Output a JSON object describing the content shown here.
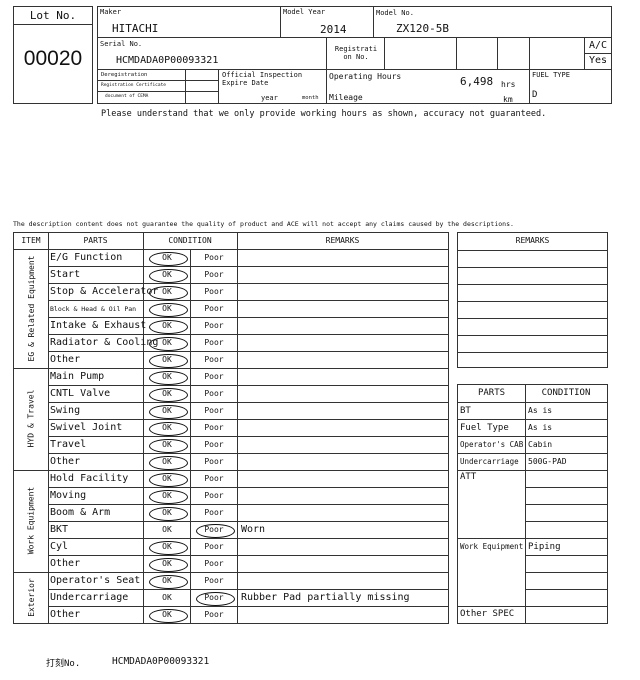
{
  "lot": {
    "label": "Lot No.",
    "value": "00020"
  },
  "header": {
    "maker_label": "Maker",
    "maker": "HITACHI",
    "year_label": "Model Year",
    "year": "2014",
    "model_label": "Model No.",
    "model": "ZX120-5B",
    "serial_label": "Serial No.",
    "serial": "HCMDADA0P00093321",
    "reg_label": "Registrati on No.",
    "ac_label": "A/C",
    "ac": "Yes",
    "dereg_label": "Deregistration",
    "regcert_label": "Registration Certificate",
    "cema_label": "document of CEMA",
    "insp_label": "Official Inspection Expire Date",
    "year_unit": "year",
    "month_unit": "month",
    "hours_label": "Operating Hours",
    "hours": "6,498",
    "hours_unit": "hrs",
    "mileage_label": "Mileage",
    "km_unit": "km",
    "fuel_label": "FUEL TYPE",
    "fuel": "D"
  },
  "notice": "Please understand that we only provide working hours as shown, accuracy not guaranteed.",
  "disclaimer": "The description content does not guarantee the quality of product and ACE will not accept any claims caused by the descriptions.",
  "table": {
    "headers": {
      "item": "ITEM",
      "parts": "PARTS",
      "condition": "CONDITION",
      "remarks": "REMARKS"
    },
    "groups": [
      "EG & Related Equipment",
      "HYD & Travel",
      "Work Equipment",
      "Exterior"
    ],
    "rows": [
      {
        "part": "E/G Function",
        "ok": "OK",
        "poor": "Poor",
        "selected": "ok",
        "remarks": ""
      },
      {
        "part": "Start",
        "ok": "OK",
        "poor": "Poor",
        "selected": "ok",
        "remarks": ""
      },
      {
        "part": "Stop & Accelerator",
        "ok": "OK",
        "poor": "Poor",
        "selected": "ok",
        "remarks": ""
      },
      {
        "part": "Block & Head & Oil Pan",
        "ok": "OK",
        "poor": "Poor",
        "selected": "ok",
        "remarks": ""
      },
      {
        "part": "Intake & Exhaust",
        "ok": "OK",
        "poor": "Poor",
        "selected": "ok",
        "remarks": ""
      },
      {
        "part": "Radiator & Cooling",
        "ok": "OK",
        "poor": "Poor",
        "selected": "ok",
        "remarks": ""
      },
      {
        "part": "Other",
        "ok": "OK",
        "poor": "Poor",
        "selected": "ok",
        "remarks": ""
      },
      {
        "part": "Main Pump",
        "ok": "OK",
        "poor": "Poor",
        "selected": "ok",
        "remarks": ""
      },
      {
        "part": "CNTL Valve",
        "ok": "OK",
        "poor": "Poor",
        "selected": "ok",
        "remarks": ""
      },
      {
        "part": "Swing",
        "ok": "OK",
        "poor": "Poor",
        "selected": "ok",
        "remarks": ""
      },
      {
        "part": "Swivel Joint",
        "ok": "OK",
        "poor": "Poor",
        "selected": "ok",
        "remarks": ""
      },
      {
        "part": "Travel",
        "ok": "OK",
        "poor": "Poor",
        "selected": "ok",
        "remarks": ""
      },
      {
        "part": "Other",
        "ok": "OK",
        "poor": "Poor",
        "selected": "ok",
        "remarks": ""
      },
      {
        "part": "Hold Facility",
        "ok": "OK",
        "poor": "Poor",
        "selected": "ok",
        "remarks": ""
      },
      {
        "part": "Moving",
        "ok": "OK",
        "poor": "Poor",
        "selected": "ok",
        "remarks": ""
      },
      {
        "part": "Boom & Arm",
        "ok": "OK",
        "poor": "Poor",
        "selected": "ok",
        "remarks": ""
      },
      {
        "part": "BKT",
        "ok": "OK",
        "poor": "Poor",
        "selected": "poor",
        "remarks": "Worn"
      },
      {
        "part": "Cyl",
        "ok": "OK",
        "poor": "Poor",
        "selected": "ok",
        "remarks": ""
      },
      {
        "part": "Other",
        "ok": "OK",
        "poor": "Poor",
        "selected": "ok",
        "remarks": ""
      },
      {
        "part": "Operator's Seat",
        "ok": "OK",
        "poor": "Poor",
        "selected": "ok",
        "remarks": ""
      },
      {
        "part": "Undercarriage",
        "ok": "OK",
        "poor": "Poor",
        "selected": "poor",
        "remarks": "Rubber Pad partially missing"
      },
      {
        "part": "Other",
        "ok": "OK",
        "poor": "Poor",
        "selected": "ok",
        "remarks": ""
      }
    ]
  },
  "right_remarks": {
    "header": "REMARKS"
  },
  "spec": {
    "headers": {
      "parts": "PARTS",
      "condition": "CONDITION"
    },
    "rows": [
      {
        "part": "BT",
        "value": "As is"
      },
      {
        "part": "Fuel Type",
        "value": "As is"
      },
      {
        "part": "Operator's CAB",
        "value": "Cabin"
      },
      {
        "part": "Undercarriage",
        "value": "500G-PAD"
      }
    ],
    "att_label": "ATT",
    "work_label": "Work Equipment",
    "work_value": "Piping",
    "other_label": "Other SPEC"
  },
  "footer": {
    "label": "打刻No.",
    "value": "HCMDADA0P00093321"
  }
}
